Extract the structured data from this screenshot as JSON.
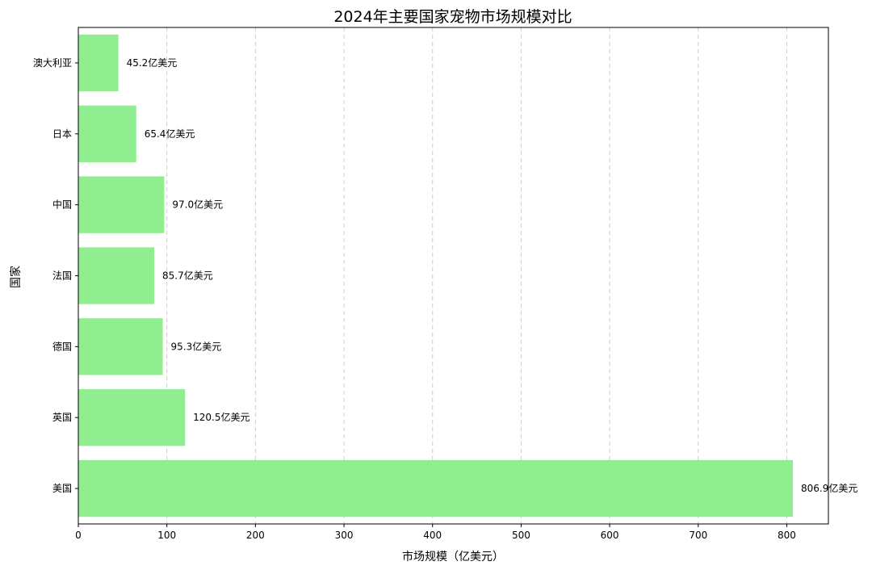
{
  "chart_data": {
    "type": "bar",
    "orientation": "horizontal",
    "title": "2024年主要国家宠物市场规模对比",
    "xlabel": "市场规模（亿美元）",
    "ylabel": "国家",
    "categories": [
      "美国",
      "英国",
      "德国",
      "法国",
      "中国",
      "日本",
      "澳大利亚"
    ],
    "values": [
      806.9,
      120.5,
      95.3,
      85.7,
      97.0,
      65.4,
      45.2
    ],
    "value_labels": [
      "806.9亿美元",
      "120.5亿美元",
      "95.3亿美元",
      "85.7亿美元",
      "97.0亿美元",
      "65.4亿美元",
      "45.2亿美元"
    ],
    "xlim": [
      0,
      847
    ],
    "xticks": [
      0,
      100,
      200,
      300,
      400,
      500,
      600,
      700,
      800
    ],
    "grid": "x, dashed",
    "bar_color": "#90ee90",
    "grid_color": "#cccccc"
  }
}
